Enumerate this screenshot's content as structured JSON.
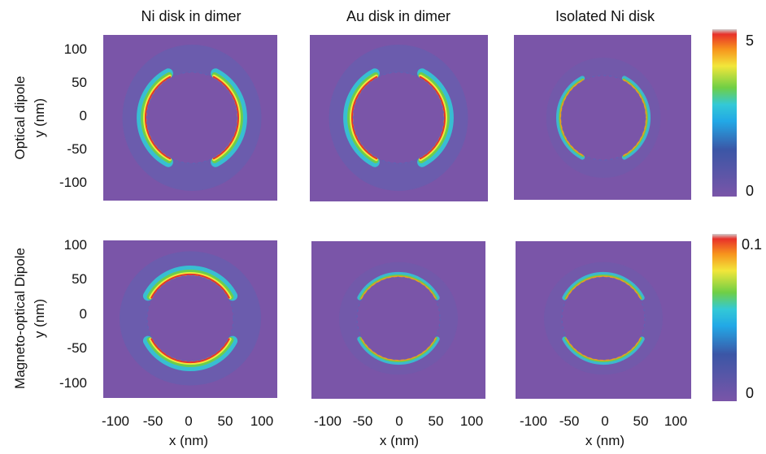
{
  "columns": [
    "Ni disk in dimer",
    "Au disk in dimer",
    "Isolated Ni disk"
  ],
  "rows": [
    {
      "label": "Optical dipole",
      "ylabel": "y (nm)",
      "colorbar": {
        "max_label": "5",
        "min_label": "0",
        "max": 5,
        "min": 0
      },
      "lobe_axis": "horizontal"
    },
    {
      "label": "Magneto-optical Dipole",
      "ylabel": "y (nm)",
      "colorbar": {
        "max_label": "0.1",
        "min_label": "0",
        "max": 0.1,
        "min": 0
      },
      "lobe_axis": "vertical"
    }
  ],
  "xlabel": "x (nm)",
  "x_ticks": [
    "-100",
    "-50",
    "0",
    "50",
    "100"
  ],
  "y_ticks": [
    "100",
    "50",
    "0",
    "-50",
    "-100"
  ],
  "chart_data": {
    "type": "heatmap",
    "grid": "2 rows x 3 columns",
    "x_values": [
      -100,
      -50,
      0,
      50,
      100
    ],
    "y_values": [
      100,
      50,
      0,
      -50,
      -100
    ],
    "disk_radius_nm": 55,
    "colormap": [
      "#7a55a8",
      "#3b56a6",
      "#22a8e6",
      "#33c9d6",
      "#6fcf45",
      "#f2e63a",
      "#f7941d",
      "#e8312a"
    ],
    "background_color": "#7a55a8"
  }
}
